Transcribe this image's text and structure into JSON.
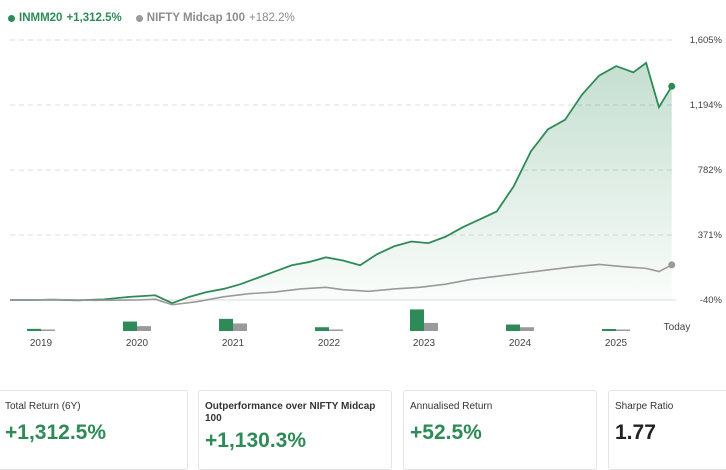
{
  "legend": [
    {
      "name": "INMM20",
      "value": "+1,312.5%",
      "color": "#2e8b57"
    },
    {
      "name": "NIFTY Midcap 100",
      "value": "+182.2%",
      "color": "#9a9a9a"
    }
  ],
  "chart_data": {
    "type": "line",
    "y_ticks": [
      "1,605%",
      "1,194%",
      "782%",
      "371%",
      "-40%"
    ],
    "ylim": [
      -40,
      1605
    ],
    "x_ticks": [
      "2019",
      "2020",
      "2021",
      "2022",
      "2023",
      "2024",
      "2025",
      "Today"
    ],
    "grid": true,
    "series": [
      {
        "name": "INMM20",
        "color": "#2e8b57",
        "points": [
          [
            2018.5,
            -40
          ],
          [
            2018.8,
            -40
          ],
          [
            2019.0,
            -38
          ],
          [
            2019.3,
            -42
          ],
          [
            2019.6,
            -36
          ],
          [
            2019.9,
            -20
          ],
          [
            2020.2,
            -10
          ],
          [
            2020.4,
            -60
          ],
          [
            2020.6,
            -20
          ],
          [
            2020.8,
            10
          ],
          [
            2021.0,
            30
          ],
          [
            2021.2,
            60
          ],
          [
            2021.4,
            100
          ],
          [
            2021.6,
            140
          ],
          [
            2021.8,
            180
          ],
          [
            2022.0,
            200
          ],
          [
            2022.2,
            230
          ],
          [
            2022.4,
            210
          ],
          [
            2022.6,
            180
          ],
          [
            2022.8,
            250
          ],
          [
            2023.0,
            300
          ],
          [
            2023.2,
            330
          ],
          [
            2023.4,
            320
          ],
          [
            2023.6,
            360
          ],
          [
            2023.8,
            420
          ],
          [
            2024.0,
            470
          ],
          [
            2024.2,
            520
          ],
          [
            2024.4,
            680
          ],
          [
            2024.6,
            900
          ],
          [
            2024.8,
            1040
          ],
          [
            2025.0,
            1100
          ],
          [
            2025.2,
            1260
          ],
          [
            2025.4,
            1380
          ],
          [
            2025.6,
            1440
          ],
          [
            2025.8,
            1400
          ],
          [
            2025.95,
            1460
          ],
          [
            2026.1,
            1180
          ],
          [
            2026.25,
            1312
          ]
        ]
      },
      {
        "name": "NIFTY Midcap 100",
        "color": "#9a9a9a",
        "points": [
          [
            2018.5,
            -40
          ],
          [
            2019.0,
            -38
          ],
          [
            2019.5,
            -42
          ],
          [
            2020.0,
            -40
          ],
          [
            2020.2,
            -35
          ],
          [
            2020.4,
            -70
          ],
          [
            2020.7,
            -50
          ],
          [
            2021.0,
            -20
          ],
          [
            2021.3,
            0
          ],
          [
            2021.6,
            10
          ],
          [
            2021.9,
            30
          ],
          [
            2022.2,
            40
          ],
          [
            2022.4,
            25
          ],
          [
            2022.7,
            15
          ],
          [
            2023.0,
            30
          ],
          [
            2023.3,
            40
          ],
          [
            2023.6,
            60
          ],
          [
            2023.9,
            90
          ],
          [
            2024.2,
            110
          ],
          [
            2024.5,
            130
          ],
          [
            2024.8,
            150
          ],
          [
            2025.1,
            170
          ],
          [
            2025.4,
            185
          ],
          [
            2025.7,
            170
          ],
          [
            2025.95,
            160
          ],
          [
            2026.1,
            140
          ],
          [
            2026.25,
            182
          ]
        ]
      }
    ],
    "bars": [
      {
        "year": "2019",
        "inmm20": 8,
        "nifty": 4
      },
      {
        "year": "2020",
        "inmm20": 35,
        "nifty": 18
      },
      {
        "year": "2021",
        "inmm20": 45,
        "nifty": 28
      },
      {
        "year": "2022",
        "inmm20": 14,
        "nifty": 2
      },
      {
        "year": "2023",
        "inmm20": 80,
        "nifty": 30
      },
      {
        "year": "2024",
        "inmm20": 24,
        "nifty": 14
      },
      {
        "year": "2025",
        "inmm20": 4,
        "nifty": 4
      }
    ]
  },
  "cards": [
    {
      "label": "Total Return (6Y)",
      "value": "+1,312.5%",
      "value_color": "#2e8b57"
    },
    {
      "label": "Outperformance over NIFTY Midcap 100",
      "value": "+1,130.3%",
      "value_color": "#2e8b57"
    },
    {
      "label": "Annualised Return",
      "value": "+52.5%",
      "value_color": "#2e8b57"
    },
    {
      "label": "Sharpe Ratio",
      "value": "1.77",
      "value_color": "#222222"
    }
  ]
}
